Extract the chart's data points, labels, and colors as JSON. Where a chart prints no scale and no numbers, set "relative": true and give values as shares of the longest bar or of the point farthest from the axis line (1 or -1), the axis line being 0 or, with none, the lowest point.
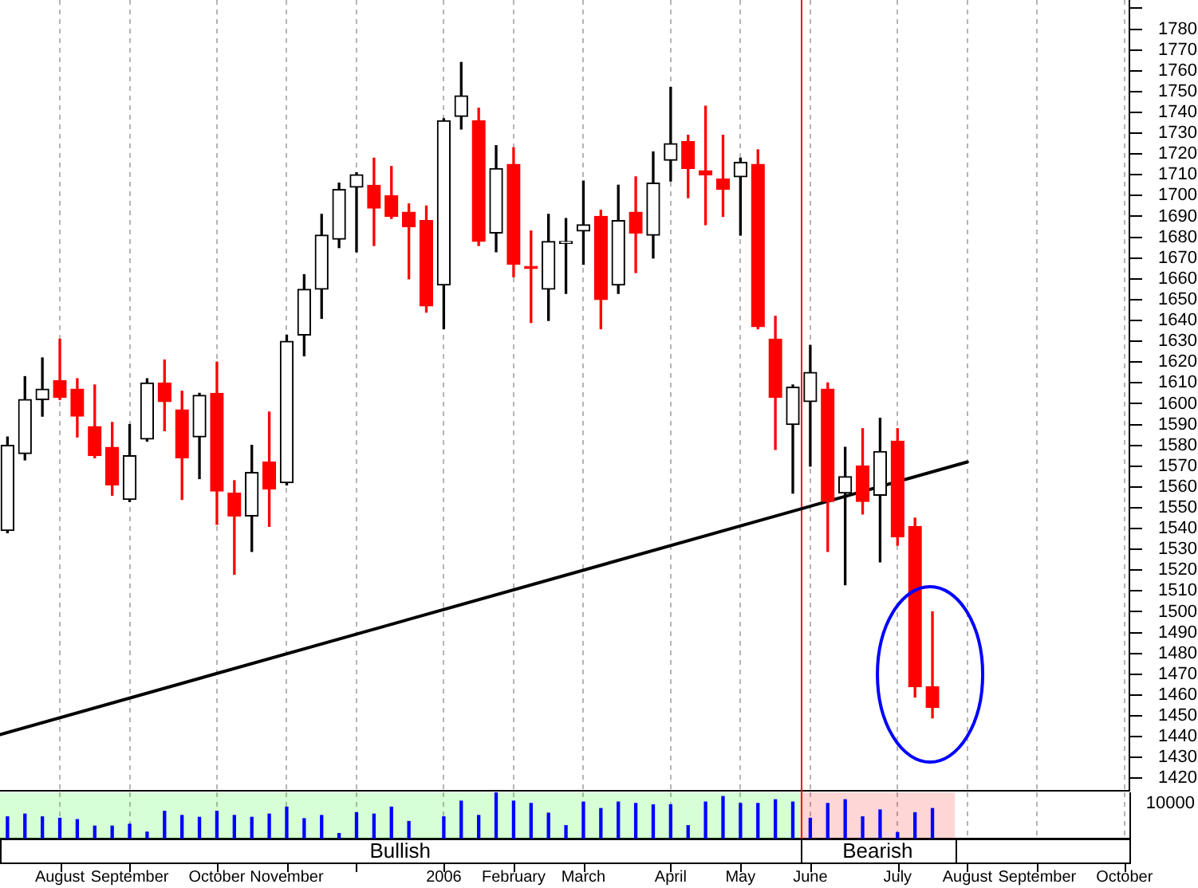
{
  "chart_data": [
    {
      "type": "candlestick",
      "x": [
        "2005-07-15",
        "2005-07-22",
        "2005-07-29",
        "2005-08-05",
        "2005-08-12",
        "2005-08-19",
        "2005-08-26",
        "2005-09-02",
        "2005-09-09",
        "2005-09-16",
        "2005-09-23",
        "2005-09-30",
        "2005-10-07",
        "2005-10-14",
        "2005-10-21",
        "2005-10-28",
        "2005-11-04",
        "2005-11-11",
        "2005-11-18",
        "2005-11-25",
        "2005-12-02",
        "2005-12-09",
        "2005-12-16",
        "2005-12-23",
        "2005-12-30",
        "2006-01-06",
        "2006-01-13",
        "2006-01-20",
        "2006-01-27",
        "2006-02-03",
        "2006-02-10",
        "2006-02-17",
        "2006-02-24",
        "2006-03-03",
        "2006-03-10",
        "2006-03-17",
        "2006-03-24",
        "2006-03-31",
        "2006-04-07",
        "2006-04-14",
        "2006-04-21",
        "2006-04-28",
        "2006-05-05",
        "2006-05-12",
        "2006-05-19",
        "2006-05-26",
        "2006-06-02",
        "2006-06-09",
        "2006-06-16",
        "2006-06-23",
        "2006-06-30",
        "2006-07-07",
        "2006-07-14",
        "2006-07-21"
      ],
      "ohlc": [
        [
          1539,
          1584,
          1538,
          1580
        ],
        [
          1576,
          1613,
          1573,
          1602
        ],
        [
          1602,
          1622,
          1594,
          1607
        ],
        [
          1611,
          1631,
          1602,
          1603
        ],
        [
          1607,
          1612,
          1584,
          1594
        ],
        [
          1589,
          1609,
          1574,
          1575
        ],
        [
          1579,
          1591,
          1556,
          1561
        ],
        [
          1554,
          1590,
          1553,
          1575
        ],
        [
          1583,
          1612,
          1582,
          1610
        ],
        [
          1610,
          1621,
          1587,
          1601
        ],
        [
          1597,
          1606,
          1554,
          1574
        ],
        [
          1584,
          1605,
          1564,
          1604
        ],
        [
          1605,
          1620,
          1542,
          1558
        ],
        [
          1557,
          1563,
          1518,
          1546
        ],
        [
          1546,
          1580,
          1529,
          1567
        ],
        [
          1572,
          1596,
          1541,
          1559
        ],
        [
          1562,
          1633,
          1561,
          1630
        ],
        [
          1633,
          1662,
          1623,
          1655
        ],
        [
          1655,
          1691,
          1641,
          1681
        ],
        [
          1679,
          1706,
          1675,
          1703
        ],
        [
          1704,
          1711,
          1673,
          1710
        ],
        [
          1705,
          1718,
          1676,
          1694
        ],
        [
          1700,
          1714,
          1689,
          1690
        ],
        [
          1692,
          1696,
          1660,
          1685
        ],
        [
          1688,
          1695,
          1644,
          1647
        ],
        [
          1657,
          1737,
          1636,
          1736
        ],
        [
          1738,
          1764,
          1732,
          1748
        ],
        [
          1736,
          1742,
          1676,
          1678
        ],
        [
          1682,
          1724,
          1673,
          1713
        ],
        [
          1715,
          1723,
          1661,
          1667
        ],
        [
          1666,
          1683,
          1639,
          1665
        ],
        [
          1655,
          1691,
          1640,
          1678
        ],
        [
          1677,
          1689,
          1653,
          1678
        ],
        [
          1683,
          1707,
          1667,
          1686
        ],
        [
          1690,
          1693,
          1636,
          1650
        ],
        [
          1657,
          1705,
          1653,
          1688
        ],
        [
          1692,
          1709,
          1663,
          1682
        ],
        [
          1681,
          1721,
          1670,
          1706
        ],
        [
          1717,
          1752,
          1707,
          1725
        ],
        [
          1726,
          1729,
          1699,
          1713
        ],
        [
          1712,
          1743,
          1686,
          1710
        ],
        [
          1708,
          1729,
          1690,
          1703
        ],
        [
          1709,
          1718,
          1681,
          1716
        ],
        [
          1715,
          1722,
          1636,
          1637
        ],
        [
          1631,
          1642,
          1578,
          1603
        ],
        [
          1590,
          1609,
          1557,
          1608
        ],
        [
          1601,
          1628,
          1570,
          1615
        ],
        [
          1607,
          1610,
          1529,
          1553
        ],
        [
          1557,
          1579,
          1513,
          1565
        ],
        [
          1570,
          1588,
          1547,
          1553
        ],
        [
          1556,
          1593,
          1524,
          1577
        ],
        [
          1582,
          1588,
          1532,
          1536
        ],
        [
          1541,
          1545,
          1459,
          1464
        ],
        [
          1464,
          1500,
          1449,
          1454
        ]
      ],
      "colors": [
        "#000000",
        "#000000",
        "#000000",
        "#ff0000",
        "#ff0000",
        "#ff0000",
        "#ff0000",
        "#000000",
        "#000000",
        "#ff0000",
        "#ff0000",
        "#000000",
        "#ff0000",
        "#ff0000",
        "#000000",
        "#ff0000",
        "#000000",
        "#000000",
        "#000000",
        "#000000",
        "#000000",
        "#ff0000",
        "#ff0000",
        "#ff0000",
        "#ff0000",
        "#000000",
        "#000000",
        "#ff0000",
        "#000000",
        "#ff0000",
        "#ff0000",
        "#000000",
        "#000000",
        "#000000",
        "#ff0000",
        "#000000",
        "#ff0000",
        "#000000",
        "#000000",
        "#ff0000",
        "#ff0000",
        "#ff0000",
        "#000000",
        "#ff0000",
        "#ff0000",
        "#000000",
        "#000000",
        "#ff0000",
        "#000000",
        "#ff0000",
        "#000000",
        "#ff0000",
        "#ff0000",
        "#ff0000"
      ],
      "series": [
        {
          "type": "line",
          "x": [
            "2005-07-12",
            "2006-08-04"
          ],
          "values": [
            1441,
            1572
          ],
          "color": "#000000"
        }
      ],
      "xlim": [
        "2005-07-12",
        "2006-10-08"
      ],
      "xticks": [
        {
          "value": "2005-08-05",
          "label": null
        },
        {
          "value": "2005-09-02",
          "label": null
        },
        {
          "value": "2005-10-07",
          "label": null
        },
        {
          "value": "2005-11-04",
          "label": null
        },
        {
          "value": "2005-12-02",
          "label": null
        },
        {
          "value": "2006-01-06",
          "label": null
        },
        {
          "value": "2006-02-03",
          "label": null
        },
        {
          "value": "2006-03-03",
          "label": null
        },
        {
          "value": "2006-04-07",
          "label": null
        },
        {
          "value": "2006-05-05",
          "label": null
        },
        {
          "value": "2006-06-02",
          "label": null
        },
        {
          "value": "2006-07-07",
          "label": null
        },
        {
          "value": "2006-08-04",
          "label": null
        },
        {
          "value": "2006-09-01",
          "label": null
        },
        {
          "value": "2006-10-06",
          "label": null
        }
      ],
      "ylim": [
        1414,
        1794
      ],
      "yticks": [
        1420,
        1430,
        1440,
        1450,
        1460,
        1470,
        1480,
        1490,
        1500,
        1510,
        1520,
        1530,
        1540,
        1550,
        1560,
        1570,
        1580,
        1590,
        1600,
        1610,
        1620,
        1630,
        1640,
        1650,
        1660,
        1670,
        1680,
        1690,
        1700,
        1710,
        1720,
        1730,
        1740,
        1750,
        1760,
        1770,
        1780,
        {
          "value": 1790,
          "label": null
        }
      ],
      "grid": "x",
      "tick_labels": "y",
      "ref_lines": [
        {
          "axis": "x",
          "value": "2006-05-29",
          "color": "#ff0000"
        }
      ]
    },
    {
      "type": "bar",
      "x": [
        "2005-07-15",
        "2005-07-22",
        "2005-07-29",
        "2005-08-05",
        "2005-08-12",
        "2005-08-19",
        "2005-08-26",
        "2005-09-02",
        "2005-09-09",
        "2005-09-16",
        "2005-09-23",
        "2005-09-30",
        "2005-10-07",
        "2005-10-14",
        "2005-10-21",
        "2005-10-28",
        "2005-11-04",
        "2005-11-11",
        "2005-11-18",
        "2005-11-25",
        "2005-12-02",
        "2005-12-09",
        "2005-12-16",
        "2005-12-23",
        "2005-12-30",
        "2006-01-06",
        "2006-01-13",
        "2006-01-20",
        "2006-01-27",
        "2006-02-03",
        "2006-02-10",
        "2006-02-17",
        "2006-02-24",
        "2006-03-03",
        "2006-03-10",
        "2006-03-17",
        "2006-03-24",
        "2006-03-31",
        "2006-04-07",
        "2006-04-14",
        "2006-04-21",
        "2006-04-28",
        "2006-05-05",
        "2006-05-12",
        "2006-05-19",
        "2006-05-26",
        "2006-06-02",
        "2006-06-09",
        "2006-06-16",
        "2006-06-23",
        "2006-06-30",
        "2006-07-07",
        "2006-07-14",
        "2006-07-21"
      ],
      "values": [
        0.47,
        0.53,
        0.47,
        0.44,
        0.41,
        0.27,
        0.27,
        0.31,
        0.14,
        0.59,
        0.5,
        0.46,
        0.59,
        0.5,
        0.46,
        0.53,
        0.68,
        0.43,
        0.5,
        0.11,
        0.56,
        0.53,
        0.68,
        0.37,
        null,
        0.47,
        0.81,
        0.5,
        1,
        0.81,
        0.76,
        0.55,
        0.28,
        0.79,
        0.65,
        0.79,
        0.76,
        0.73,
        0.73,
        0.28,
        0.79,
        0.91,
        0.76,
        0.76,
        0.84,
        0.79,
        0.44,
        0.76,
        0.84,
        0.47,
        0.62,
        0.13,
        0.56,
        0.65
      ],
      "color": "#0000ff",
      "relative": true,
      "xlim": [
        "2005-07-12",
        "2006-10-08"
      ],
      "xticks": [
        {
          "value": "2005-08-05",
          "label": "August"
        },
        {
          "value": "2005-09-02",
          "label": "September"
        },
        {
          "value": "2005-10-07",
          "label": "October"
        },
        {
          "value": "2005-11-04",
          "label": "November"
        },
        {
          "value": "2005-12-02",
          "label": null
        },
        {
          "value": "2006-01-06",
          "label": "2006"
        },
        {
          "value": "2006-02-03",
          "label": "February"
        },
        {
          "value": "2006-03-03",
          "label": "March"
        },
        {
          "value": "2006-04-07",
          "label": "April"
        },
        {
          "value": "2006-05-05",
          "label": "May"
        },
        {
          "value": "2006-06-02",
          "label": "June"
        },
        {
          "value": "2006-07-07",
          "label": "July"
        },
        {
          "value": "2006-08-04",
          "label": "August"
        },
        {
          "value": "2006-09-01",
          "label": "September"
        },
        {
          "value": "2006-10-06",
          "label": "October"
        }
      ],
      "grid": "x",
      "tick_labels": "x",
      "ref_lines": [
        {
          "axis": "x",
          "value": "2006-05-29",
          "color": "#ff0000"
        }
      ],
      "bands": [
        {
          "axis": "x",
          "from": "2005-07-12",
          "to": "2006-05-29",
          "label": "Bullish",
          "color": "#00ff00"
        },
        {
          "axis": "x",
          "from": "2006-05-29",
          "to": "2006-07-30",
          "label": "Bearish",
          "color": "#ff0000"
        }
      ],
      "annotations": [
        "10000"
      ]
    }
  ]
}
